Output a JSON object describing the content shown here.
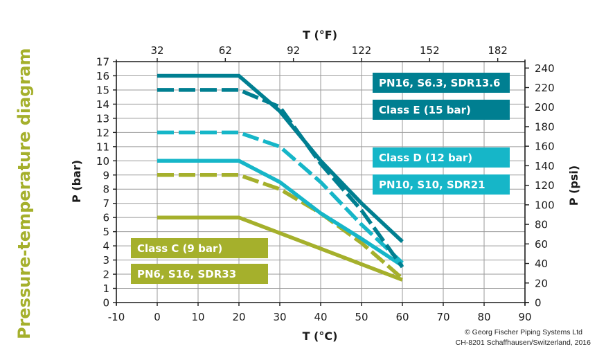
{
  "side_title": "Pressure-temperature diagram",
  "copyright": {
    "line1": "© Georg Fischer Piping Systems Ltd",
    "line2": "CH-8201 Schaffhausen/Switzerland, 2016"
  },
  "colors": {
    "olive": "#a5b02c",
    "teal_dark": "#007f91",
    "teal_light": "#16b6c8",
    "grid": "#9a9a9a",
    "axis": "#1b1b1b",
    "side_title": "#a5b02c"
  },
  "chart_data": {
    "type": "line",
    "title": "Pressure-temperature diagram",
    "xlabel": "T (°C)",
    "x2label": "T (°F)",
    "ylabel": "P (bar)",
    "y2label": "P (psi)",
    "xlim": [
      -10,
      90
    ],
    "ylim": [
      0,
      17
    ],
    "x_ticks": [
      -10,
      0,
      10,
      20,
      30,
      40,
      50,
      60,
      70,
      80,
      90
    ],
    "y_ticks": [
      0,
      1,
      2,
      3,
      4,
      5,
      6,
      7,
      8,
      9,
      10,
      11,
      12,
      13,
      14,
      15,
      16,
      17
    ],
    "x2_ticks": [
      32,
      62,
      92,
      122,
      152,
      182
    ],
    "y2_ticks": [
      0,
      20,
      40,
      60,
      80,
      100,
      120,
      140,
      160,
      180,
      200,
      220,
      240
    ],
    "grid": true,
    "series": [
      {
        "name": "PN16, S6.3, SDR13.6",
        "style": "solid",
        "color": "#007f91",
        "x": [
          0,
          20,
          30,
          40,
          50,
          60
        ],
        "y": [
          16,
          16,
          13.5,
          10,
          7,
          4.3
        ]
      },
      {
        "name": "Class E (15 bar)",
        "style": "dashed",
        "color": "#007f91",
        "x": [
          0,
          20,
          30,
          40,
          50,
          60
        ],
        "y": [
          15,
          15,
          13.8,
          9.8,
          6.5,
          2.5
        ]
      },
      {
        "name": "Class D (12 bar)",
        "style": "dashed",
        "color": "#16b6c8",
        "x": [
          0,
          20,
          30,
          40,
          50,
          60
        ],
        "y": [
          12,
          12,
          11,
          8.5,
          5.5,
          2.8
        ]
      },
      {
        "name": "PN10, S10, SDR21",
        "style": "solid",
        "color": "#16b6c8",
        "x": [
          0,
          20,
          30,
          40,
          50,
          60
        ],
        "y": [
          10,
          10,
          8.5,
          6.3,
          4.5,
          2.6
        ]
      },
      {
        "name": "Class C (9 bar)",
        "style": "dashed",
        "color": "#a5b02c",
        "x": [
          0,
          20,
          30,
          40,
          50,
          60
        ],
        "y": [
          9,
          9,
          8,
          6.3,
          4.2,
          1.7
        ]
      },
      {
        "name": "PN6, S16, SDR33",
        "style": "solid",
        "color": "#a5b02c",
        "x": [
          0,
          20,
          60
        ],
        "y": [
          6,
          6,
          1.6
        ]
      }
    ],
    "legend": [
      {
        "label": "PN16, S6.3, SDR13.6",
        "color": "#007f91",
        "placement": "top-right"
      },
      {
        "label": "Class E (15 bar)",
        "color": "#007f91",
        "placement": "top-right"
      },
      {
        "label": "Class D (12 bar)",
        "color": "#16b6c8",
        "placement": "right"
      },
      {
        "label": "PN10, S10, SDR21",
        "color": "#16b6c8",
        "placement": "right"
      },
      {
        "label": "Class C (9 bar)",
        "color": "#a5b02c",
        "placement": "bottom-left"
      },
      {
        "label": "PN6, S16, SDR33",
        "color": "#a5b02c",
        "placement": "bottom-left"
      }
    ]
  }
}
